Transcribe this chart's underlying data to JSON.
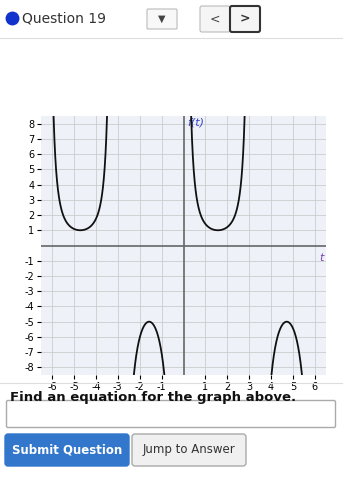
{
  "xlim": [
    -6.5,
    6.5
  ],
  "ylim": [
    -8.5,
    8.5
  ],
  "xticks": [
    -6,
    -5,
    -4,
    -3,
    -2,
    -1,
    1,
    2,
    3,
    4,
    5,
    6
  ],
  "yticks": [
    -8,
    -7,
    -6,
    -5,
    -4,
    -3,
    -2,
    -1,
    1,
    2,
    3,
    4,
    5,
    6,
    7,
    8
  ],
  "graph_bg": "#eef2f8",
  "grid_color": "#cccccc",
  "curve_color": "#111111",
  "axis_label_x": "t",
  "axis_label_y": "f(t)",
  "axis_label_x_color": "#7744aa",
  "axis_label_y_color": "#3344cc",
  "header_title": "Question 19",
  "header_dot_color": "#1133cc",
  "footer_label": "Find an equation for the graph above.",
  "btn1_text": "Submit Question",
  "btn2_text": "Jump to Answer",
  "btn1_color": "#3377cc",
  "btn2_color": "#f0f0f0",
  "pi": 3.14159265358979,
  "upward_amplitude": 1,
  "downward_amplitude": 5
}
